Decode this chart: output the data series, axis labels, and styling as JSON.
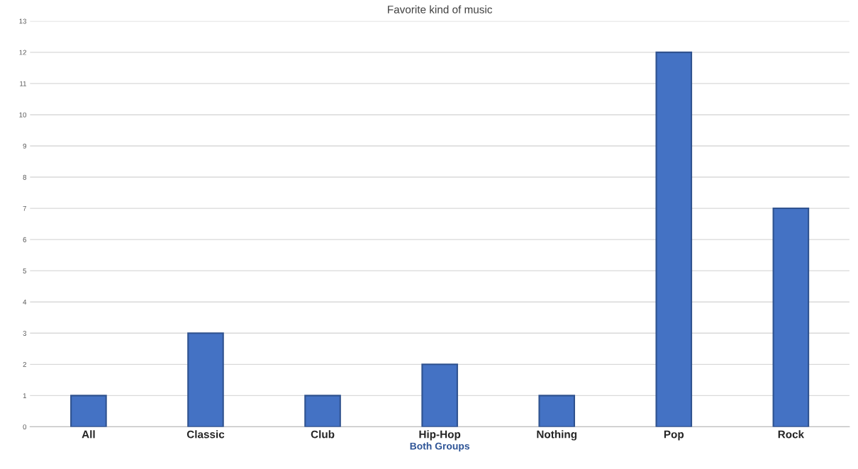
{
  "chart_data": {
    "type": "bar",
    "title": "Favorite kind of music",
    "xlabel": "Both Groups",
    "categories": [
      "All",
      "Classic",
      "Club",
      "Hip-Hop",
      "Nothing",
      "Pop",
      "Rock"
    ],
    "values": [
      1,
      3,
      1,
      2,
      1,
      12,
      7
    ],
    "color": "#4472c4",
    "ylim": [
      0,
      13
    ],
    "yticks": [
      0,
      1,
      2,
      3,
      4,
      5,
      6,
      7,
      8,
      9,
      10,
      11,
      12,
      13
    ],
    "grid": "y",
    "legend": false
  }
}
